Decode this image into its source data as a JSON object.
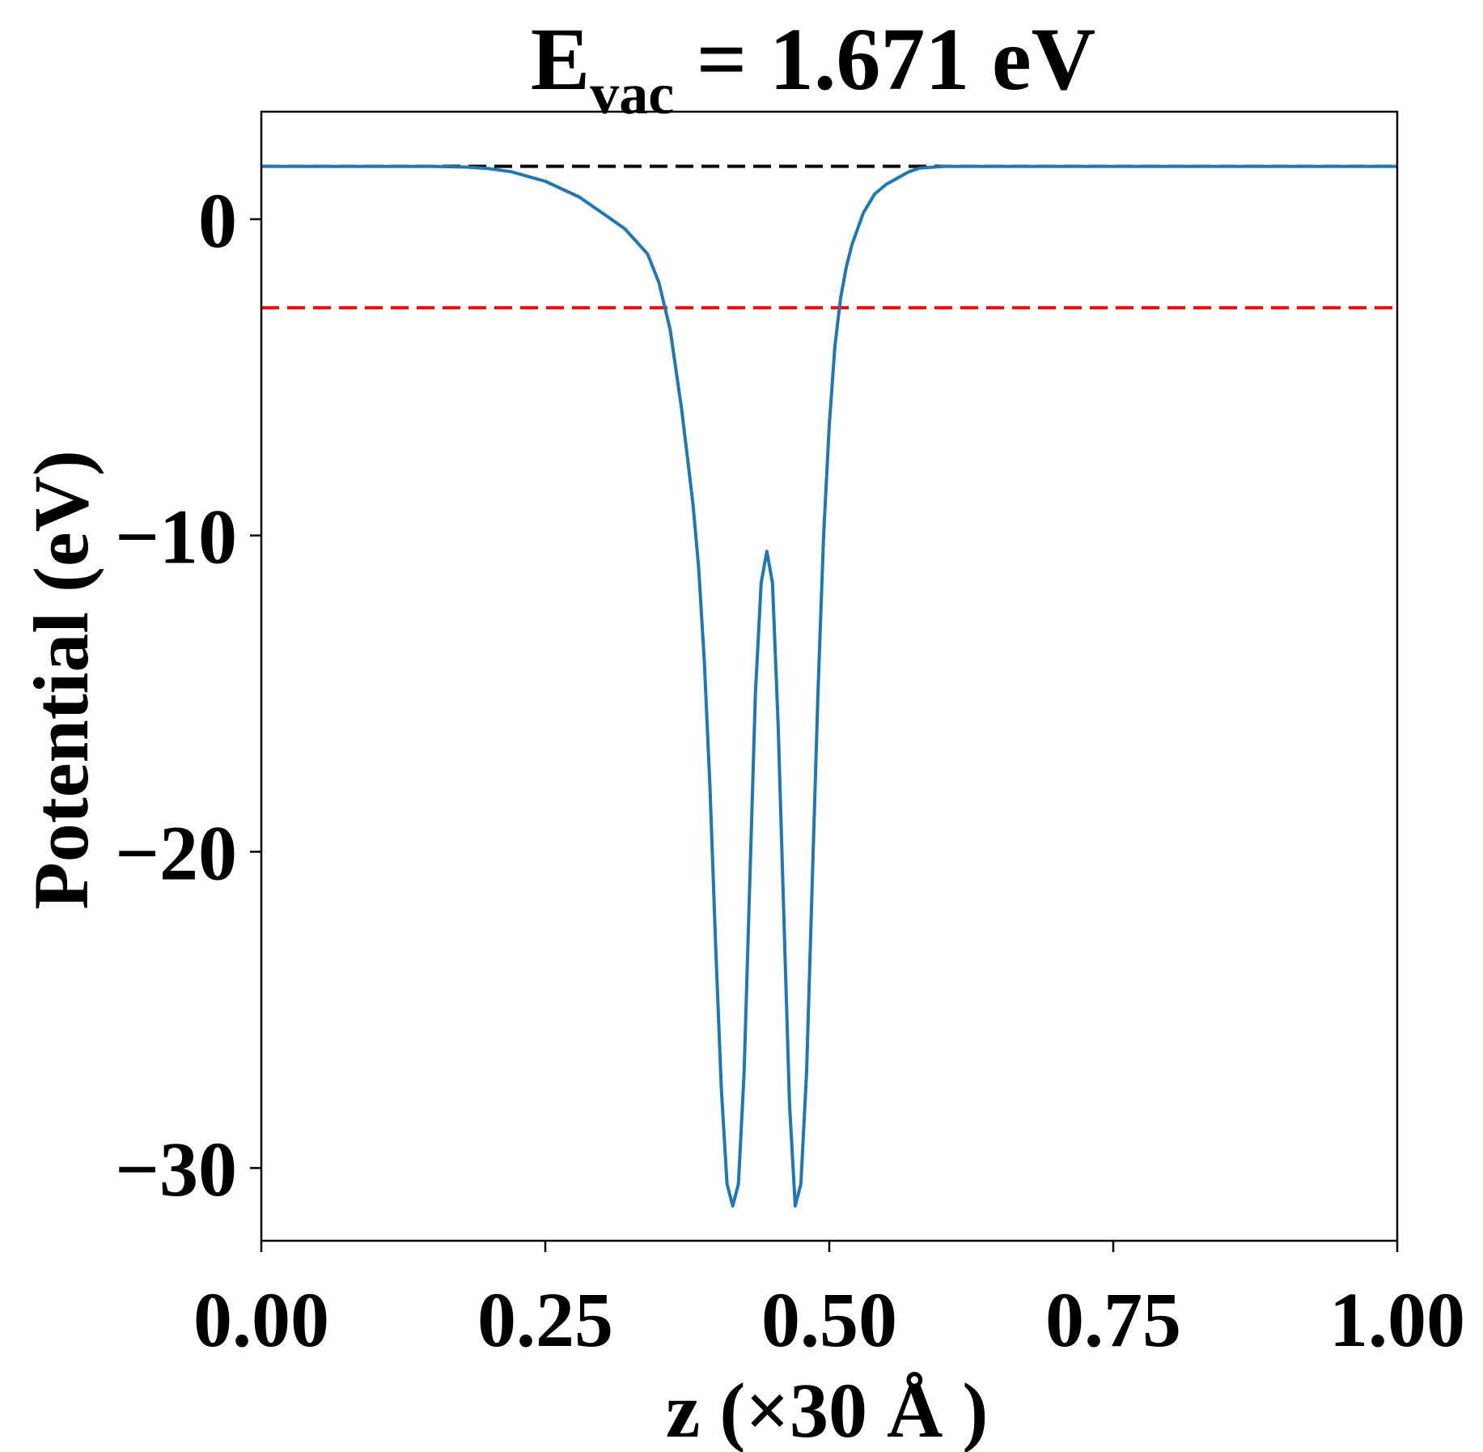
{
  "chart_data": {
    "type": "line",
    "title": {
      "main": "E",
      "subscript": "vac",
      "rest": " = 1.671 eV"
    },
    "xlabel": "z (×30 Å )",
    "ylabel": "Potential (eV)",
    "xlim": [
      0,
      1
    ],
    "ylim": [
      -32.3,
      3.4
    ],
    "xticks": [
      0,
      0.25,
      0.5,
      0.75,
      1.0
    ],
    "xtick_labels": [
      "0.00",
      "0.25",
      "0.50",
      "0.75",
      "1.00"
    ],
    "yticks": [
      0,
      -10,
      -20,
      -30
    ],
    "ytick_labels": [
      "0",
      "−10",
      "−20",
      "−30"
    ],
    "grid": false,
    "series": [
      {
        "color": "#1f77b4",
        "x": [
          0.0,
          0.05,
          0.1,
          0.15,
          0.18,
          0.2,
          0.22,
          0.25,
          0.28,
          0.3,
          0.32,
          0.34,
          0.35,
          0.36,
          0.37,
          0.38,
          0.385,
          0.39,
          0.395,
          0.4,
          0.405,
          0.41,
          0.415,
          0.42,
          0.425,
          0.43,
          0.435,
          0.44,
          0.445,
          0.45,
          0.455,
          0.46,
          0.465,
          0.47,
          0.475,
          0.48,
          0.485,
          0.49,
          0.495,
          0.5,
          0.505,
          0.51,
          0.515,
          0.52,
          0.525,
          0.53,
          0.535,
          0.54,
          0.55,
          0.56,
          0.57,
          0.58,
          0.6,
          0.62,
          0.65,
          0.68,
          0.7,
          0.72,
          0.75,
          0.8,
          0.85,
          0.9,
          0.95,
          1.0
        ],
        "y": [
          1.67,
          1.67,
          1.67,
          1.67,
          1.65,
          1.6,
          1.5,
          1.2,
          0.7,
          0.2,
          -0.3,
          -1.1,
          -2.0,
          -3.5,
          -6.0,
          -9.0,
          -11.0,
          -14.0,
          -18.0,
          -23.0,
          -27.5,
          -30.5,
          -31.2,
          -30.5,
          -27.0,
          -21.0,
          -15.0,
          -11.5,
          -10.5,
          -11.5,
          -16.0,
          -22.0,
          -28.0,
          -31.2,
          -30.5,
          -27.0,
          -21.0,
          -15.0,
          -10.0,
          -6.5,
          -4.0,
          -2.5,
          -1.5,
          -0.8,
          -0.3,
          0.2,
          0.5,
          0.8,
          1.1,
          1.3,
          1.5,
          1.62,
          1.67,
          1.67,
          1.67,
          1.67,
          1.67,
          1.67,
          1.67,
          1.67,
          1.67,
          1.67,
          1.67,
          1.67
        ]
      }
    ],
    "reference_lines": [
      {
        "y": 1.671,
        "color": "#000000",
        "style": "dashed"
      },
      {
        "y": -2.8,
        "color": "#ff0000",
        "style": "dashed"
      }
    ]
  }
}
